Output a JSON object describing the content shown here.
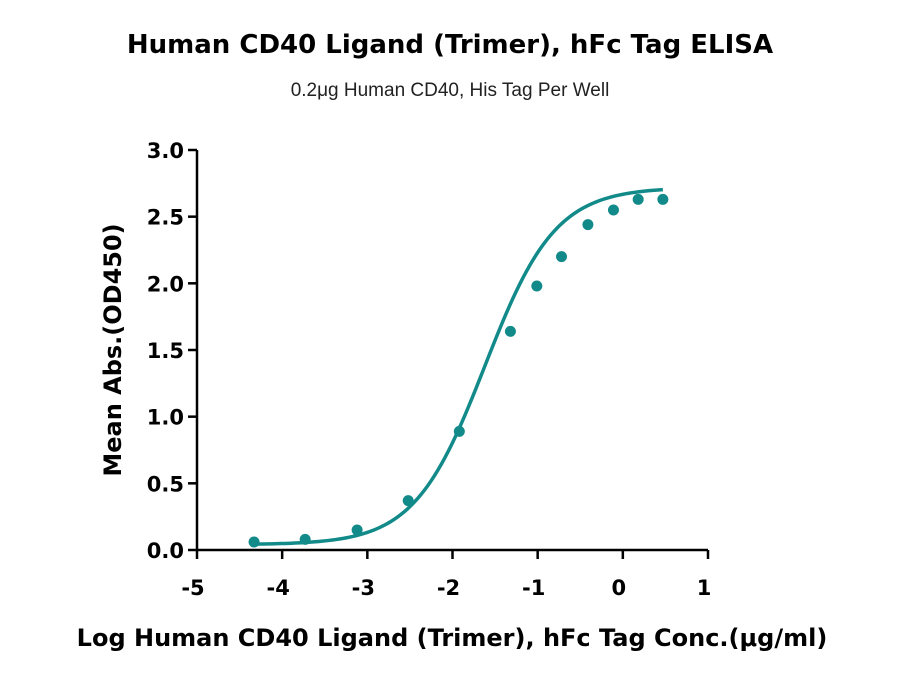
{
  "chart_data": {
    "type": "scatter",
    "title": "Human CD40 Ligand (Trimer), hFc Tag ELISA",
    "subtitle": "0.2μg Human CD40, His Tag Per Well",
    "xlabel": "Log Human CD40 Ligand (Trimer), hFc Tag Conc.(μg/ml)",
    "ylabel": "Mean Abs.(OD450)",
    "xlim": [
      -5,
      1
    ],
    "ylim": [
      0,
      3.0
    ],
    "x_ticks": [
      "-5",
      "-4",
      "-3",
      "-2",
      "-1",
      "0",
      "1"
    ],
    "y_ticks": [
      "0.0",
      "0.5",
      "1.0",
      "1.5",
      "2.0",
      "2.5",
      "3.0"
    ],
    "grid": false,
    "color": "#138a8a",
    "fit": "sigmoidal four-parameter logistic",
    "series": [
      {
        "x": [
          -4.33,
          -3.73,
          -3.12,
          -2.52,
          -1.92,
          -1.32,
          -1.01,
          -0.72,
          -0.41,
          -0.11,
          0.18,
          0.47
        ],
        "y": [
          0.06,
          0.08,
          0.15,
          0.37,
          0.89,
          1.64,
          1.98,
          2.2,
          2.44,
          2.55,
          2.63,
          2.63
        ]
      }
    ]
  }
}
